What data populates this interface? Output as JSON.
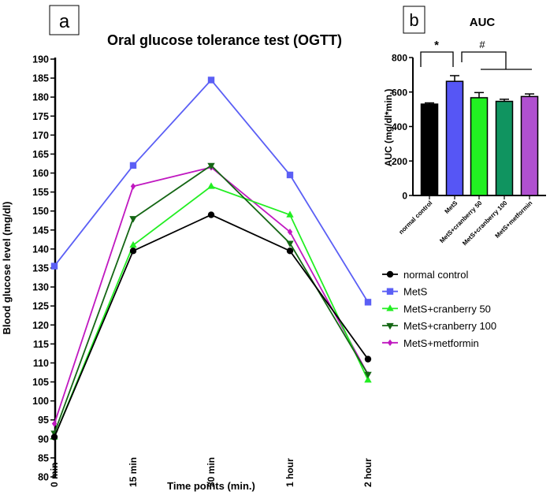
{
  "chart_data": [
    {
      "type": "line",
      "panel_label": "a",
      "title": "Oral glucose tolerance test (OGTT)",
      "xlabel": "Time points (min.)",
      "ylabel": "Blood glucose level (mg/dl)",
      "categories": [
        "0 min",
        "15 min",
        "30 min",
        "1 hour",
        "2 hour"
      ],
      "ylim": [
        80,
        190
      ],
      "ytick_step": 5,
      "legend_position": "right",
      "series": [
        {
          "name": "normal control",
          "color": "#000000",
          "marker": "circle",
          "values": [
            90.5,
            139.5,
            149,
            139.5,
            111
          ]
        },
        {
          "name": "MetS",
          "color": "#5b5ff5",
          "marker": "square",
          "values": [
            135.5,
            162,
            184.5,
            159.5,
            126
          ]
        },
        {
          "name": "MetS+cranberry 50",
          "color": "#22ee22",
          "marker": "triangle-up",
          "values": [
            90.5,
            141,
            156.5,
            149,
            105.5
          ]
        },
        {
          "name": "MetS+cranberry 100",
          "color": "#146614",
          "marker": "triangle-down",
          "values": [
            91.5,
            148,
            162,
            141.5,
            107
          ]
        },
        {
          "name": "MetS+metformin",
          "color": "#c018c0",
          "marker": "diamond",
          "values": [
            94,
            156.5,
            161.5,
            144.5,
            107
          ]
        }
      ]
    },
    {
      "type": "bar",
      "panel_label": "b",
      "title": "AUC",
      "xlabel": "",
      "ylabel": "AUC (mg/dl*min.)",
      "ylim": [
        0,
        800
      ],
      "ytick_step": 200,
      "categories": [
        "normal control",
        "MetS",
        "MetS+cranberry 50",
        "MetS+cranberry 100",
        "MetS+metformin"
      ],
      "values": [
        530,
        662,
        567,
        546,
        574
      ],
      "errors": [
        7,
        33,
        30,
        12,
        15
      ],
      "colors": [
        "#000000",
        "#5656f5",
        "#22f022",
        "#109460",
        "#b050d0"
      ],
      "annotations": [
        "*",
        "#"
      ]
    }
  ]
}
